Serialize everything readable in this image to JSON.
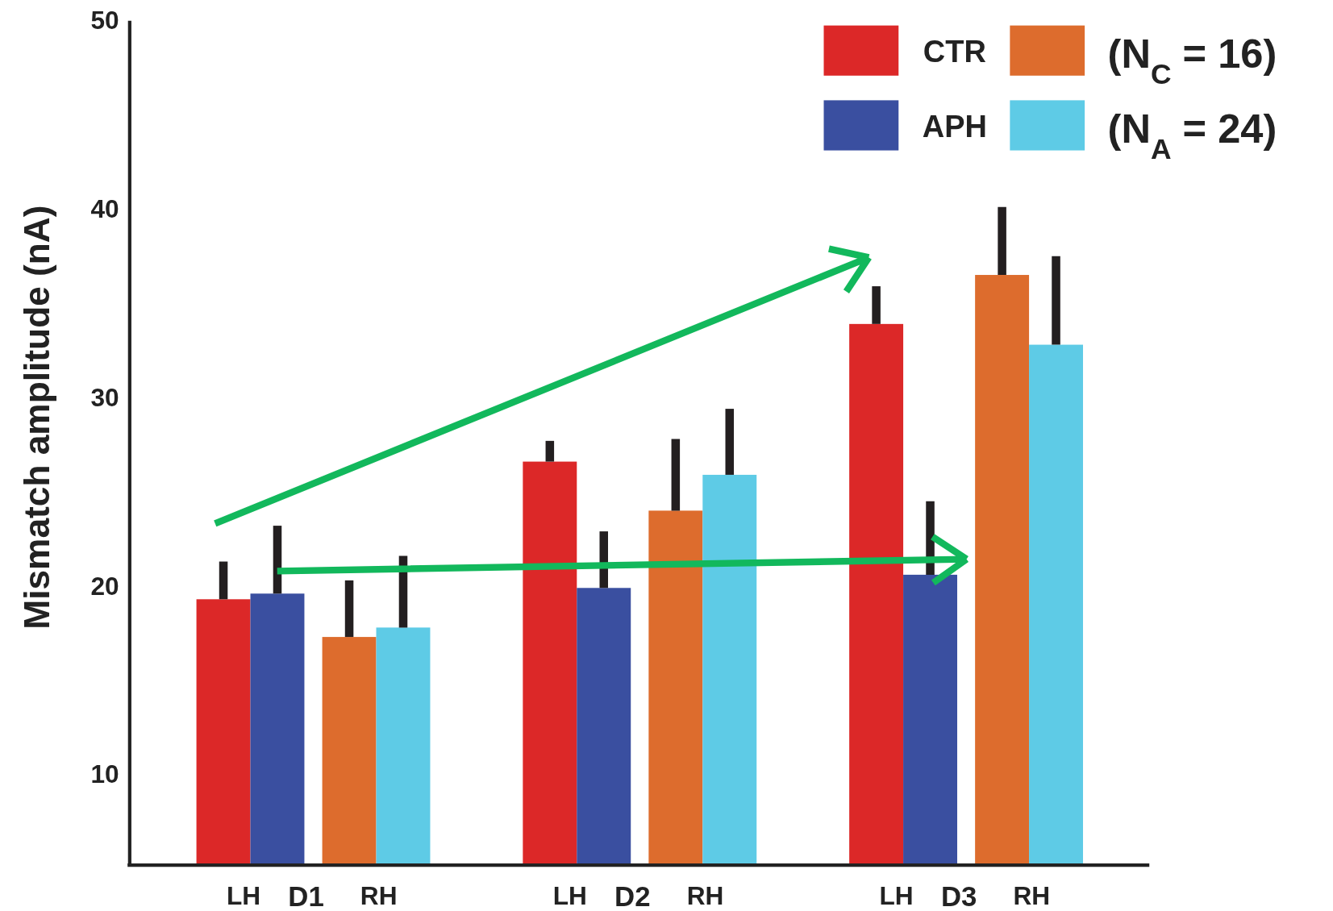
{
  "chart_data": {
    "type": "bar",
    "ylabel": "Mismatch amplitude (nA)",
    "categories": [
      "LH",
      "RH",
      "LH",
      "RH",
      "LH",
      "RH"
    ],
    "series": [
      {
        "name": "CTR",
        "colors": [
          "#dc2828",
          "#dd6c2d",
          "#dc2828",
          "#dd6c2d",
          "#dc2828",
          "#dd6c2d"
        ],
        "values": [
          19.3,
          17.3,
          26.6,
          24.0,
          33.9,
          36.5
        ],
        "errors": [
          [
            19.3,
            21.3
          ],
          [
            17.3,
            20.3
          ],
          [
            26.6,
            27.7
          ],
          [
            24.0,
            27.8
          ],
          [
            33.9,
            35.9
          ],
          [
            36.5,
            40.1
          ]
        ]
      },
      {
        "name": "APH",
        "colors": [
          "#3a4fa0",
          "#5ecbe6",
          "#3a4fa0",
          "#5ecbe6",
          "#3a4fa0",
          "#5ecbe6"
        ],
        "values": [
          19.6,
          17.8,
          19.9,
          25.9,
          20.6,
          32.8
        ],
        "errors": [
          [
            19.6,
            23.2
          ],
          [
            17.8,
            21.6
          ],
          [
            19.9,
            22.9
          ],
          [
            25.9,
            29.4
          ],
          [
            20.6,
            24.5
          ],
          [
            32.8,
            37.5
          ]
        ]
      }
    ],
    "ylim": [
      5.2,
      50
    ],
    "yticks": [
      10,
      20,
      30,
      40,
      50
    ],
    "grid": false,
    "legend": "top right",
    "annotations": [
      "(N$_{C}$ = 16)",
      "(N$_{A}$ = 24)",
      "D1",
      "D2",
      "D3"
    ]
  }
}
